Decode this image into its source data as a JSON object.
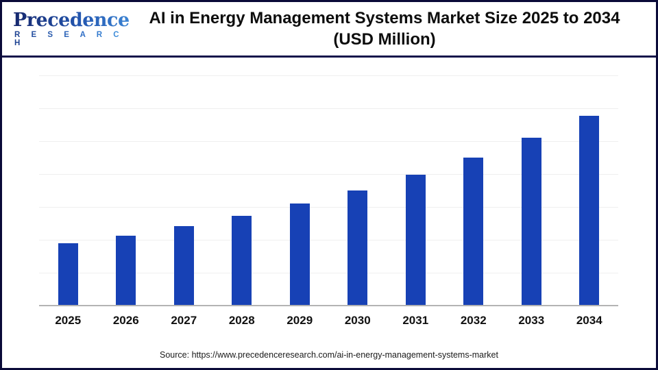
{
  "header": {
    "logo_brand": "Precedence",
    "logo_research": "R E S E A R C H",
    "title_line1": "AI in Energy Management Systems Market Size 2025 to 2034",
    "title_line2": "(USD Million)"
  },
  "chart_data": {
    "type": "bar",
    "title": "AI in Energy Management Systems Market Size 2025 to 2034 (USD Million)",
    "categories": [
      "2025",
      "2026",
      "2027",
      "2028",
      "2029",
      "2030",
      "2031",
      "2032",
      "2033",
      "2034"
    ],
    "values": [
      10010,
      11340,
      12850,
      14570,
      16510,
      18710,
      21200,
      24020,
      27220,
      30840
    ],
    "xlabel": "",
    "ylabel": "",
    "ylim": [
      0,
      38500
    ],
    "y_tick_labels_visible": false,
    "grid": "horizontal",
    "gridline_count": 7,
    "legend": "none",
    "bar_color": "#1741b5"
  },
  "footer": {
    "source": "Source: https://www.precedenceresearch.com/ai-in-energy-management-systems-market"
  },
  "colors": {
    "bar": "#1741b5",
    "axis_line": "#b3b3b3",
    "gridline": "#efefef",
    "outer_border": "#0a0a38",
    "header_divider": "#10104a",
    "title_text": "#0d0d0d"
  }
}
